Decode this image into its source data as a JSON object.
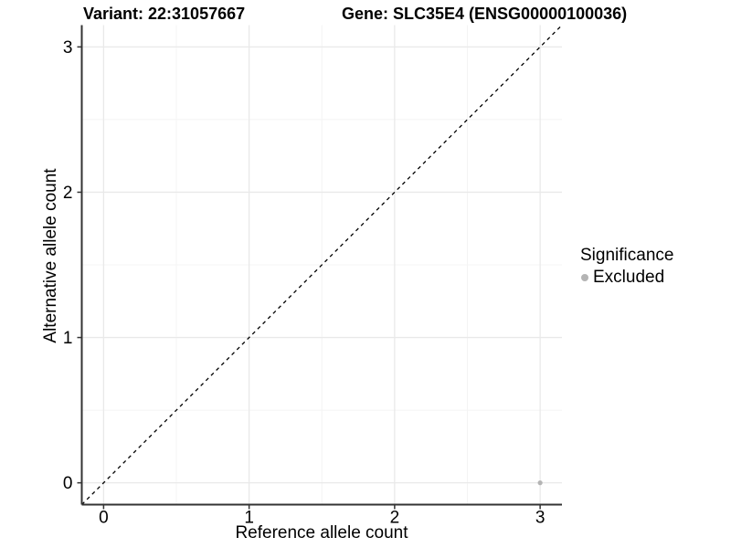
{
  "chart_data": {
    "type": "scatter",
    "title_left": "Variant: 22:31057667",
    "title_right": "Gene: SLC35E4 (ENSG00000100036)",
    "xlabel": "Reference allele count",
    "ylabel": "Alternative allele count",
    "xlim": [
      -0.15,
      3.15
    ],
    "ylim": [
      -0.15,
      3.15
    ],
    "xticks": [
      0,
      1,
      2,
      3
    ],
    "yticks": [
      0,
      1,
      2,
      3
    ],
    "xticks_minor": [
      0.5,
      1.5,
      2.5
    ],
    "yticks_minor": [
      0.5,
      1.5,
      2.5
    ],
    "grid": "major+minor",
    "reference_line": {
      "type": "identity",
      "style": "dashed",
      "x1": -0.15,
      "y1": -0.15,
      "x2": 3.15,
      "y2": 3.15
    },
    "series": [
      {
        "name": "Excluded",
        "color": "#b4b4b4",
        "points": [
          {
            "x": 3,
            "y": 0
          }
        ]
      }
    ],
    "legend": {
      "title": "Significance",
      "position": "right",
      "items": [
        {
          "label": "Excluded",
          "color": "#b4b4b4"
        }
      ]
    },
    "colors": {
      "background": "#ffffff",
      "grid_major": "#e9e9e9",
      "grid_minor": "#f4f4f4",
      "axis_line": "#333333",
      "tick_mark": "#333333",
      "tick_label": "#000000",
      "reference_line": "#000000",
      "point": "#b4b4b4"
    }
  }
}
